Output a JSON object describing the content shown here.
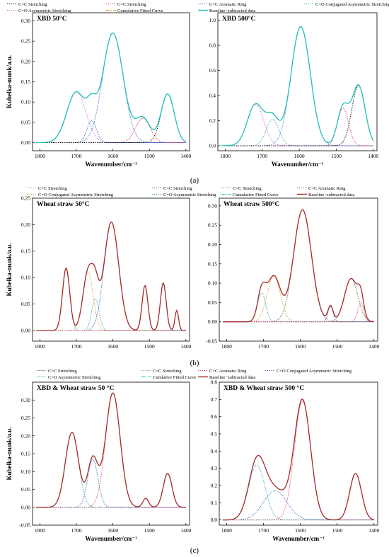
{
  "figure": {
    "panel_labels": [
      "(a)",
      "(b)",
      "(c)"
    ]
  },
  "chart_data": [
    {
      "id": "a1",
      "type": "line",
      "title": "XBD 50°C",
      "xlabel": "Wavenumber/cm⁻¹",
      "ylabel": "Kubelka-munk/a.u.",
      "xlim": [
        1820,
        1390
      ],
      "ylim": [
        -0.02,
        0.32
      ],
      "xticks": [
        1800,
        1700,
        1600,
        1500,
        1400
      ],
      "yticks": [
        0.0,
        0.05,
        0.1,
        0.15,
        0.2,
        0.25,
        0.3
      ],
      "legend": [
        {
          "label": "C=C Stretching",
          "color": "#000000",
          "dash": "dot"
        },
        {
          "label": "C=C Stretching",
          "color": "#e8336b",
          "dash": "dot"
        },
        {
          "label": "C=C Aromatic Ring",
          "color": "#2e63c4",
          "dash": "dot"
        },
        {
          "label": "C=O Conjugated Asymmetric Stretching",
          "color": "#2aa79b",
          "dash": "dot"
        },
        {
          "label": "C=O Asymmetric Stretching",
          "color": "#c85fd6",
          "dash": "dot"
        },
        {
          "label": "Cumulative Fitted Curve",
          "color": "#e59a22",
          "dash": "dashdot"
        },
        {
          "label": "Baseline−subtracted data",
          "color": "#1fbfb8",
          "dash": "solid"
        }
      ],
      "peaks": [
        {
          "center": 1700,
          "amp": 0.125,
          "width": 26,
          "color": "#c85fd6"
        },
        {
          "center": 1658,
          "amp": 0.055,
          "width": 13,
          "color": "#2e63c4"
        },
        {
          "center": 1600,
          "amp": 0.27,
          "width": 28,
          "color": "#2e63c4"
        },
        {
          "center": 1518,
          "amp": 0.06,
          "width": 20,
          "color": "#e8336b"
        },
        {
          "center": 1450,
          "amp": 0.12,
          "width": 18,
          "color": "#000000"
        }
      ],
      "data_color": "#1fbfb8"
    },
    {
      "id": "a2",
      "type": "line",
      "title": "XBD 500°C",
      "xlabel": "Wavenumber/cm⁻¹",
      "ylabel": "",
      "xlim": [
        1820,
        1390
      ],
      "ylim": [
        -0.04,
        1.06
      ],
      "xticks": [
        1800,
        1700,
        1600,
        1500,
        1400
      ],
      "yticks": [
        0.0,
        0.2,
        0.4,
        0.6,
        0.8,
        1.0
      ],
      "peaks": [
        {
          "center": 1718,
          "amp": 0.33,
          "width": 22,
          "color": "#c85fd6"
        },
        {
          "center": 1672,
          "amp": 0.21,
          "width": 17,
          "color": "#2aa79b"
        },
        {
          "center": 1596,
          "amp": 0.95,
          "width": 26,
          "color": "#2e63c4"
        },
        {
          "center": 1482,
          "amp": 0.3,
          "width": 15,
          "color": "#e8336b"
        },
        {
          "center": 1440,
          "amp": 0.48,
          "width": 18,
          "color": "#000000"
        }
      ],
      "data_color": "#1fbfb8"
    },
    {
      "id": "b1",
      "type": "line",
      "title": "Wheat straw 50°C",
      "xlabel": "",
      "ylabel": "Kubelka-munk/a.u.",
      "xlim": [
        1820,
        1390
      ],
      "ylim": [
        -0.02,
        0.25
      ],
      "xticks": [
        1800,
        1700,
        1600,
        1500,
        1400
      ],
      "yticks": [
        0.0,
        0.05,
        0.1,
        0.15,
        0.2,
        0.25
      ],
      "legend": [
        {
          "label": "C=C Stretching",
          "color": "#e59a22",
          "dash": "dot"
        },
        {
          "label": "C=C Stretching",
          "color": "#555555",
          "dash": "dot"
        },
        {
          "label": "C=C Stretching",
          "color": "#e8336b",
          "dash": "dot"
        },
        {
          "label": "C=C Aromatic Ring",
          "color": "#2e63c4",
          "dash": "dot"
        },
        {
          "label": "C=O Conjugated Asymmetric Stretching",
          "color": "#e59a22",
          "dash": "dot"
        },
        {
          "label": "C=O Asymmetric Stretching",
          "color": "#2aa79b",
          "dash": "dot"
        },
        {
          "label": "Cumulative Fitted Curve",
          "color": "#1fbfb8",
          "dash": "dashdot"
        },
        {
          "label": "Baseline−subtracted data",
          "color": "#a52a2a",
          "dash": "solid"
        }
      ],
      "peaks": [
        {
          "center": 1728,
          "amp": 0.118,
          "width": 10,
          "color": "#2aa79b"
        },
        {
          "center": 1668,
          "amp": 0.11,
          "width": 14,
          "color": "#e59a22"
        },
        {
          "center": 1604,
          "amp": 0.205,
          "width": 20,
          "color": "#2e63c4"
        },
        {
          "center": 1648,
          "amp": 0.06,
          "width": 10,
          "color": "#2aa79b"
        },
        {
          "center": 1512,
          "amp": 0.085,
          "width": 8,
          "color": "#555555"
        },
        {
          "center": 1462,
          "amp": 0.09,
          "width": 8,
          "color": "#555555"
        },
        {
          "center": 1425,
          "amp": 0.038,
          "width": 5,
          "color": "#e8336b"
        }
      ],
      "data_color": "#a52a2a"
    },
    {
      "id": "b2",
      "type": "line",
      "title": "Wheat straw 500°C",
      "xlabel": "",
      "ylabel": "",
      "xlim": [
        1820,
        1390
      ],
      "ylim": [
        -0.05,
        0.32
      ],
      "xticks": [
        1800,
        1700,
        1600,
        1500,
        1400
      ],
      "yticks": [
        -0.05,
        0.0,
        0.05,
        0.1,
        0.15,
        0.2,
        0.25,
        0.3
      ],
      "peaks": [
        {
          "center": 1705,
          "amp": 0.075,
          "width": 11,
          "color": "#2aa79b"
        },
        {
          "center": 1672,
          "amp": 0.118,
          "width": 18,
          "color": "#e59a22"
        },
        {
          "center": 1594,
          "amp": 0.29,
          "width": 24,
          "color": "#555555"
        },
        {
          "center": 1518,
          "amp": 0.04,
          "width": 7,
          "color": "#2e63c4"
        },
        {
          "center": 1462,
          "amp": 0.112,
          "width": 18,
          "color": "#555555"
        },
        {
          "center": 1436,
          "amp": 0.05,
          "width": 8,
          "color": "#e8336b"
        }
      ],
      "data_color": "#a52a2a"
    },
    {
      "id": "c1",
      "type": "line",
      "title": "XBD & Wheat straw 50 °C",
      "xlabel": "Wavenumber/cm⁻¹",
      "ylabel": "Kubelka-munk/a.u.",
      "xlim": [
        1820,
        1390
      ],
      "ylim": [
        -0.05,
        0.35
      ],
      "xticks": [
        1800,
        1700,
        1600,
        1500,
        1400
      ],
      "yticks": [
        -0.05,
        0.0,
        0.05,
        0.1,
        0.15,
        0.2,
        0.25,
        0.3
      ],
      "legend": [
        {
          "label": "C=C Stretching",
          "color": "#555555",
          "dash": "dot"
        },
        {
          "label": "C=C Stretching",
          "color": "#c85fd6",
          "dash": "dot"
        },
        {
          "label": "C=C Aromatic Ring",
          "color": "#e8336b",
          "dash": "dot"
        },
        {
          "label": "C=O Conjugated Asymmetric Stretching",
          "color": "#2e63c4",
          "dash": "dot"
        },
        {
          "label": "C=O Asymmetric Stretching",
          "color": "#2aa79b",
          "dash": "dot"
        },
        {
          "label": "Cumlative Fitted Curve",
          "color": "#1fbfb8",
          "dash": "dashdot"
        },
        {
          "label": "Baseline−subtracted data",
          "color": "#a52a2a",
          "dash": "solid"
        }
      ],
      "peaks": [
        {
          "center": 1712,
          "amp": 0.21,
          "width": 18,
          "color": "#2aa79b"
        },
        {
          "center": 1655,
          "amp": 0.135,
          "width": 14,
          "color": "#2e63c4"
        },
        {
          "center": 1600,
          "amp": 0.32,
          "width": 20,
          "color": "#e8336b"
        },
        {
          "center": 1510,
          "amp": 0.025,
          "width": 8,
          "color": "#c85fd6"
        },
        {
          "center": 1450,
          "amp": 0.095,
          "width": 12,
          "color": "#555555"
        }
      ],
      "data_color": "#a52a2a"
    },
    {
      "id": "c2",
      "type": "line",
      "title": "XBD & Wheat straw 500 °C",
      "xlabel": "Wavenumber/cm⁻¹",
      "ylabel": "",
      "xlim": [
        1820,
        1390
      ],
      "ylim": [
        -0.03,
        0.8
      ],
      "xticks": [
        1800,
        1700,
        1600,
        1500,
        1400
      ],
      "yticks": [
        0.0,
        0.1,
        0.2,
        0.3,
        0.4,
        0.5,
        0.6,
        0.7,
        0.8
      ],
      "peaks": [
        {
          "center": 1718,
          "amp": 0.32,
          "width": 22,
          "color": "#2aa79b"
        },
        {
          "center": 1668,
          "amp": 0.17,
          "width": 32,
          "color": "#2e63c4"
        },
        {
          "center": 1594,
          "amp": 0.69,
          "width": 22,
          "color": "#e8336b"
        },
        {
          "center": 1450,
          "amp": 0.27,
          "width": 16,
          "color": "#555555"
        }
      ],
      "data_color": "#a52a2a"
    }
  ]
}
